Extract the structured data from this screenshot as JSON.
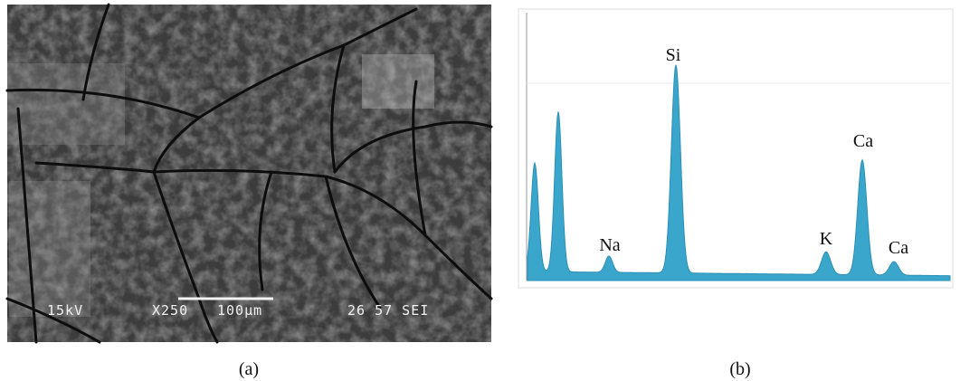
{
  "figure": {
    "panel_a": {
      "caption": "(a)",
      "overlay": [
        "15kV",
        "X250",
        "100µm",
        "26 57 SEI"
      ]
    },
    "panel_b": {
      "caption": "(b)",
      "peak_labels": [
        "Na",
        "Si",
        "K",
        "Ca",
        "Ca"
      ]
    }
  }
}
